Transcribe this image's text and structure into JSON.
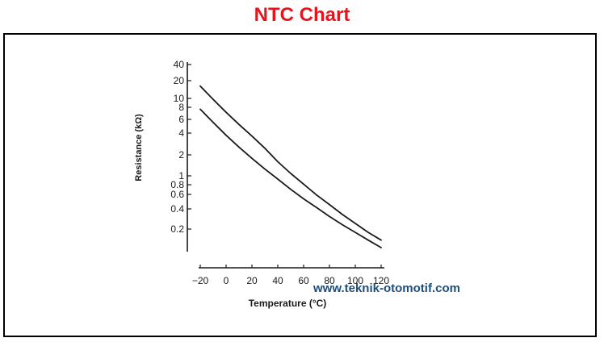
{
  "page": {
    "title": "NTC Chart",
    "title_color": "#e8141c",
    "watermark": "www.teknik-otomotif.com",
    "watermark_color": "#1f4e79"
  },
  "chart_data": {
    "type": "line",
    "title": "",
    "xlabel": "Temperature (°C)",
    "ylabel": "Resistance (kΩ)",
    "x_ticks": [
      -20,
      0,
      20,
      40,
      60,
      80,
      100,
      120
    ],
    "x_tick_labels": [
      "−20",
      "0",
      "20",
      "40",
      "60",
      "80",
      "100",
      "120"
    ],
    "y_scale": "log",
    "y_ticks": [
      0.2,
      0.4,
      0.6,
      0.8,
      1,
      2,
      4,
      6,
      8,
      10,
      20,
      40
    ],
    "y_tick_labels": [
      "0.2",
      "0.4",
      "0.6",
      "0.8",
      "1",
      "2",
      "4",
      "6",
      "8",
      "10",
      "20",
      "40"
    ],
    "xlim": [
      -20,
      120
    ],
    "ylim": [
      0.1,
      40
    ],
    "grid": false,
    "line_color": "#1a1a1a",
    "series": [
      {
        "x": [
          -20,
          -10,
          0,
          10,
          20,
          30,
          40,
          50,
          60,
          70,
          80,
          90,
          100,
          110,
          120
        ],
        "values": [
          20,
          13,
          8.6,
          5.8,
          4.0,
          2.7,
          1.75,
          1.2,
          0.85,
          0.6,
          0.44,
          0.32,
          0.24,
          0.18,
          0.14
        ]
      },
      {
        "x": [
          -20,
          -10,
          0,
          10,
          20,
          30,
          40,
          50,
          60,
          70,
          80,
          90,
          100,
          110,
          120
        ],
        "values": [
          9.5,
          6.2,
          4.1,
          2.8,
          1.95,
          1.38,
          1.0,
          0.72,
          0.53,
          0.4,
          0.3,
          0.23,
          0.18,
          0.14,
          0.11
        ]
      }
    ]
  }
}
